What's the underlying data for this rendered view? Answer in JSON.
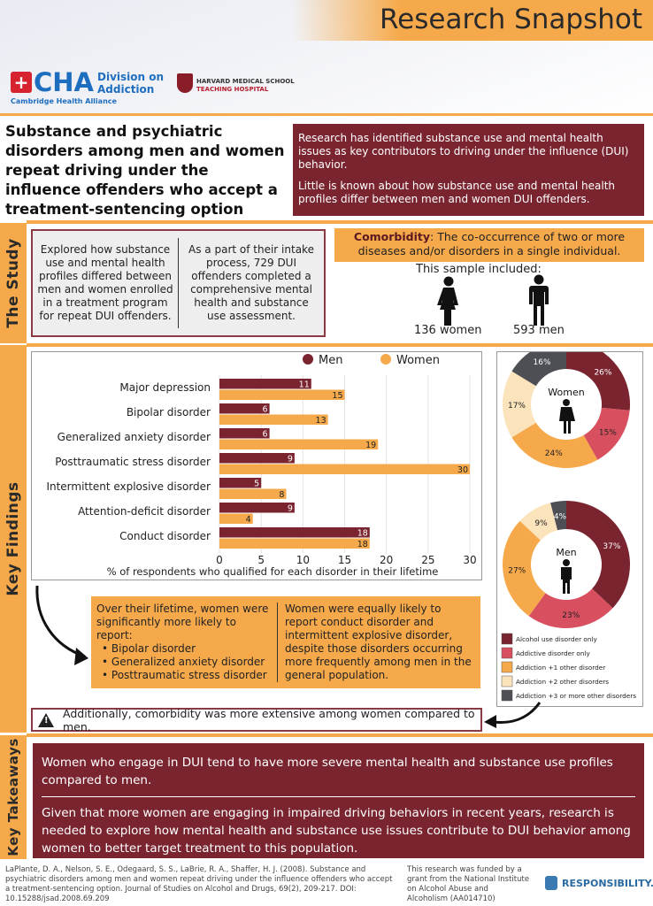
{
  "header": {
    "title": "Research Snapshot",
    "cha_logo": "CHA",
    "cha_sub": "Cambridge Health Alliance",
    "division": [
      "Division on",
      "Addiction"
    ],
    "hms": [
      "HARVARD MEDICAL SCHOOL",
      "TEACHING HOSPITAL"
    ]
  },
  "study_title": "Substance and psychiatric disorders among men and women repeat driving under the influence offenders who accept a treatment-sentencing option",
  "intro": [
    "Research has identified substance use and mental health issues as key contributors to driving under the influence (DUI) behavior.",
    "Little is known about how substance use and mental health profiles differ between men and women DUI offenders."
  ],
  "sections": {
    "study": "The Study",
    "findings": "Key Findings",
    "takeaways": "Key Takeaways"
  },
  "study": {
    "col1": "Explored how substance use and mental health profiles differed between men and women enrolled in a treatment program for repeat DUI offenders.",
    "col2": "As a part of their intake process, 729 DUI offenders completed a comprehensive mental health and substance use assessment.",
    "comorbidity_term": "Comorbidity",
    "comorbidity_def": ": The co-occurrence of two or more diseases and/or disorders in a single individual.",
    "sample_label": "This sample included:",
    "women": "136 women",
    "men": "593 men"
  },
  "colors": {
    "maroon": "#7a2430",
    "orange": "#f6a94a",
    "pink": "#d85060",
    "cream": "#fbe3bb",
    "gray": "#4d4f55"
  },
  "chart_data": [
    {
      "type": "bar",
      "orientation": "horizontal",
      "categories": [
        "Major depression",
        "Bipolar disorder",
        "Generalized anxiety disorder",
        "Posttraumatic stress disorder",
        "Intermittent explosive disorder",
        "Attention-deficit disorder",
        "Conduct disorder"
      ],
      "series": [
        {
          "name": "Men",
          "color": "#7a2430",
          "values": [
            11,
            6,
            6,
            9,
            5,
            9,
            18
          ]
        },
        {
          "name": "Women",
          "color": "#f6a94a",
          "values": [
            15,
            13,
            19,
            30,
            8,
            4,
            18
          ]
        }
      ],
      "xlabel": "% of respondents who qualified for each disorder in their lifetime",
      "xlim": [
        0,
        30
      ],
      "xticks": [
        0,
        5,
        10,
        15,
        20,
        25,
        30
      ],
      "grid": true,
      "legend": "top"
    },
    {
      "type": "pie",
      "variant": "donut",
      "label": "Women",
      "categories": [
        "Alcohol use disorder only",
        "Addictive disorder only",
        "Addiction +1 other disorder",
        "Addiction +2 other disorders",
        "Addiction +3 or more other disorders"
      ],
      "values": [
        26,
        15,
        24,
        17,
        16
      ],
      "value_labels": [
        "26%",
        "15%",
        "24%",
        "17%",
        "16%"
      ]
    },
    {
      "type": "pie",
      "variant": "donut",
      "label": "Men",
      "categories": [
        "Alcohol use disorder only",
        "Addictive disorder only",
        "Addiction +1 other disorder",
        "Addiction +2 other disorders",
        "Addiction +3 or more other disorders"
      ],
      "values": [
        37,
        23,
        27,
        9,
        4
      ],
      "value_labels": [
        "37%",
        "23%",
        "27%",
        "9%",
        "4%"
      ]
    }
  ],
  "donut_legend": [
    {
      "label": "Alcohol use disorder only",
      "color": "#7a2430"
    },
    {
      "label": "Addictive disorder only",
      "color": "#d85060"
    },
    {
      "label": "Addiction +1 other disorder",
      "color": "#f6a94a"
    },
    {
      "label": "Addiction +2 other disorders",
      "color": "#fbe3bb"
    },
    {
      "label": "Addiction +3 or more other disorders",
      "color": "#4d4f55"
    }
  ],
  "findings": {
    "col1_intro": "Over their lifetime, women were significantly more likely to report:",
    "col1_items": [
      "Bipolar disorder",
      "Generalized anxiety disorder",
      "Posttraumatic stress disorder"
    ],
    "col2": "Women were equally likely to report conduct disorder and intermittent explosive disorder, despite those disorders occurring more frequently among men in the general population."
  },
  "warning": "Additionally, comorbidity was more extensive among women compared to men.",
  "takeaways": [
    "Women who engage in DUI tend to have more severe mental health and substance use profiles compared to men.",
    "Given that more women are engaging in impaired driving behaviors in recent years, research is needed to explore how mental health and substance use issues contribute to DUI behavior among women to better target treatment to this population."
  ],
  "footer": {
    "citation": "LaPlante, D. A., Nelson, S. E., Odegaard, S. S., LaBrie, R. A., Shaffer, H. J. (2008). Substance and psychiatric disorders among men and women repeat driving under the influence offenders who accept a treatment-sentencing option. Journal of Studies on Alcohol and Drugs, 69(2), 209-217. DOI: 10.15288/jsad.2008.69.209",
    "funding": "This research was funded by a grant from the National Institute on Alcohol Abuse and Alcoholism (AA014710)",
    "logo": "RESPONSIBILITY.ORG"
  }
}
